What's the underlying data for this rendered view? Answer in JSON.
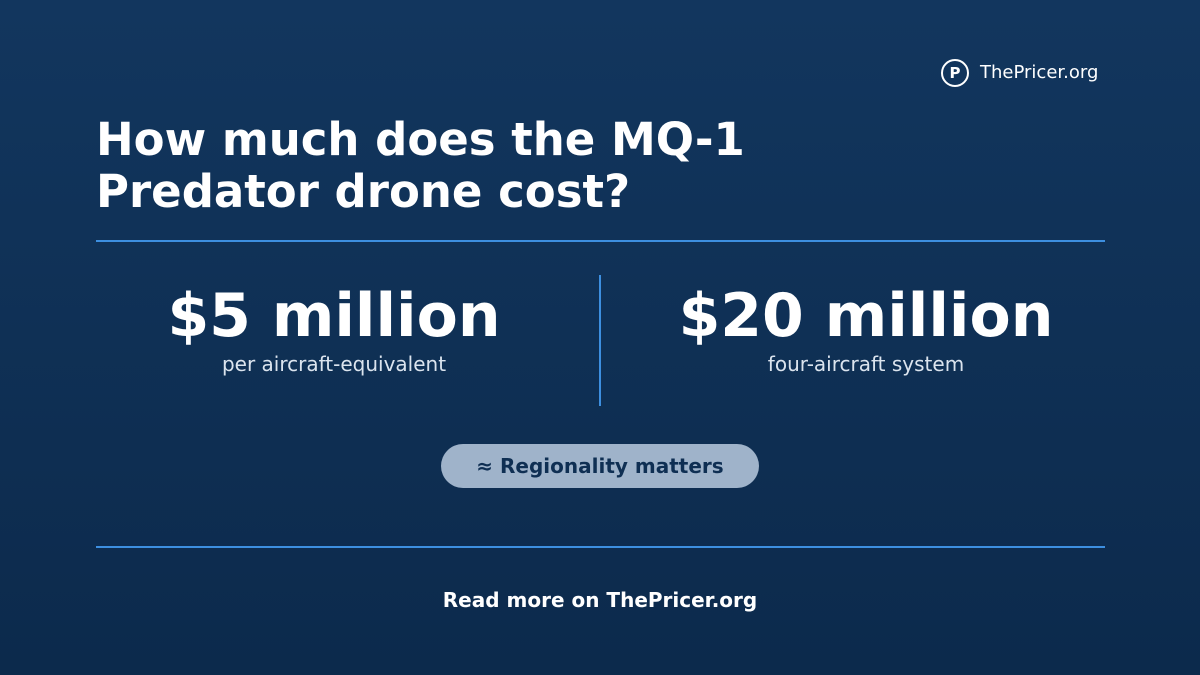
{
  "brand": {
    "logo_letter": "P",
    "name": "ThePricer.org"
  },
  "header": {
    "title_line1": "How much does the MQ-1",
    "title_line2": "Predator drone cost?"
  },
  "stats": [
    {
      "value": "$5 million",
      "label": "per aircraft-equivalent"
    },
    {
      "value": "$20 million",
      "label": "four-aircraft system"
    }
  ],
  "badge": "≈ Regionality matters",
  "footer": "Read more on ThePricer.org"
}
